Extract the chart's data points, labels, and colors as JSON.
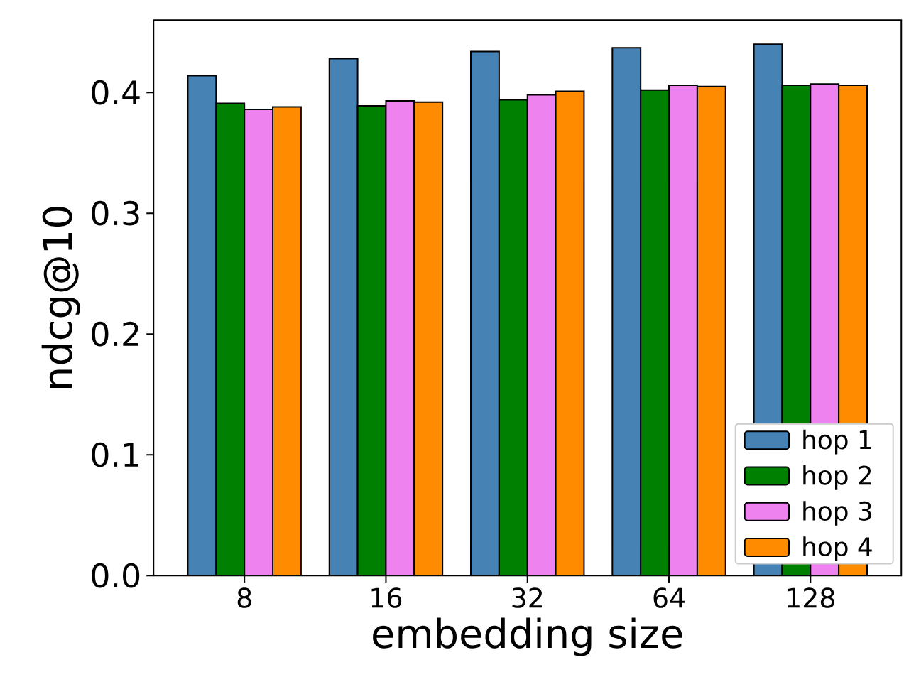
{
  "chart_data": {
    "type": "bar",
    "xlabel": "embedding size",
    "ylabel": "ndcg@10",
    "categories": [
      "8",
      "16",
      "32",
      "64",
      "128"
    ],
    "series": [
      {
        "name": "hop 1",
        "color": "#4682b4",
        "values": [
          0.414,
          0.428,
          0.434,
          0.437,
          0.44
        ]
      },
      {
        "name": "hop 2",
        "color": "#008000",
        "values": [
          0.391,
          0.389,
          0.394,
          0.402,
          0.406
        ]
      },
      {
        "name": "hop 3",
        "color": "#ee82ee",
        "values": [
          0.386,
          0.393,
          0.398,
          0.406,
          0.407
        ]
      },
      {
        "name": "hop 4",
        "color": "#ff8c00",
        "values": [
          0.388,
          0.392,
          0.401,
          0.405,
          0.406
        ]
      }
    ],
    "ylim": [
      0,
      0.46
    ],
    "yticks": [
      {
        "value": 0,
        "label": "0.0"
      },
      {
        "value": 0.1,
        "label": "0.1"
      },
      {
        "value": 0.2,
        "label": "0.2"
      },
      {
        "value": 0.3,
        "label": "0.3"
      },
      {
        "value": 0.4,
        "label": "0.4"
      }
    ],
    "legend": "bottom right",
    "grid": false
  }
}
